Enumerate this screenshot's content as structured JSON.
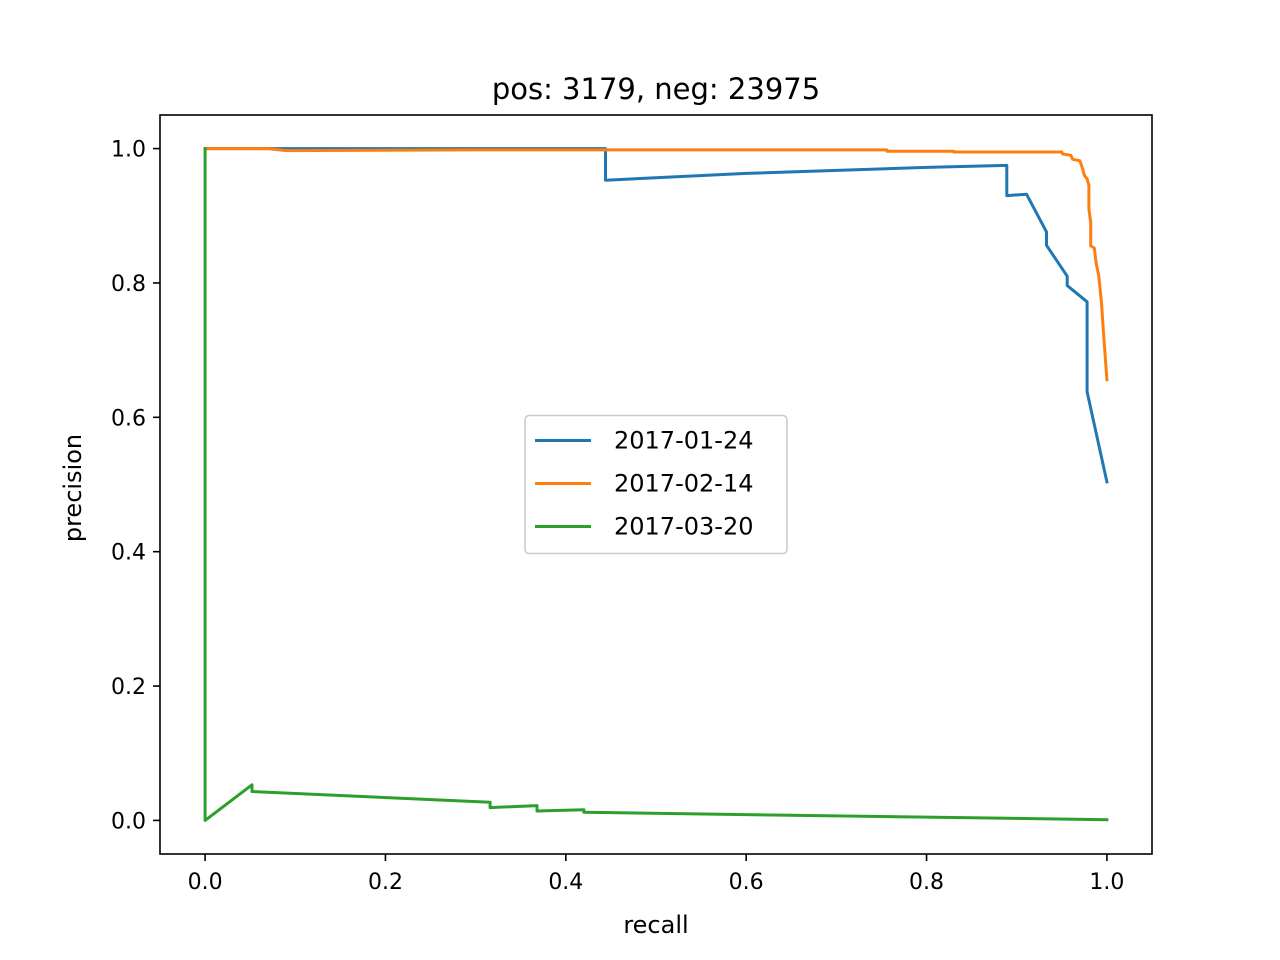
{
  "chart_data": {
    "type": "line",
    "title": "pos: 3179, neg: 23975",
    "xlabel": "recall",
    "ylabel": "precision",
    "xlim": [
      -0.05,
      1.05
    ],
    "ylim": [
      -0.05,
      1.05
    ],
    "xticks": [
      0.0,
      0.2,
      0.4,
      0.6,
      0.8,
      1.0
    ],
    "xtick_labels": [
      "0.0",
      "0.2",
      "0.4",
      "0.6",
      "0.8",
      "1.0"
    ],
    "yticks": [
      0.0,
      0.2,
      0.4,
      0.6,
      0.8,
      1.0
    ],
    "ytick_labels": [
      "0.0",
      "0.2",
      "0.4",
      "0.6",
      "0.8",
      "1.0"
    ],
    "grid": false,
    "legend_position": "center",
    "series": [
      {
        "name": "2017-01-24",
        "color": "#1f77b4",
        "points": [
          [
            0.0,
            1.0
          ],
          [
            0.444,
            1.0
          ],
          [
            0.444,
            0.953
          ],
          [
            0.6,
            0.963
          ],
          [
            0.8,
            0.972
          ],
          [
            0.889,
            0.975
          ],
          [
            0.889,
            0.93
          ],
          [
            0.911,
            0.932
          ],
          [
            0.933,
            0.876
          ],
          [
            0.933,
            0.856
          ],
          [
            0.956,
            0.81
          ],
          [
            0.956,
            0.796
          ],
          [
            0.978,
            0.772
          ],
          [
            0.978,
            0.638
          ],
          [
            1.0,
            0.504
          ]
        ]
      },
      {
        "name": "2017-02-14",
        "color": "#ff7f0e",
        "points": [
          [
            0.0,
            1.0
          ],
          [
            0.07,
            1.0
          ],
          [
            0.09,
            0.997
          ],
          [
            0.3,
            0.998
          ],
          [
            0.756,
            0.998
          ],
          [
            0.756,
            0.996
          ],
          [
            0.83,
            0.996
          ],
          [
            0.83,
            0.995
          ],
          [
            0.95,
            0.995
          ],
          [
            0.951,
            0.992
          ],
          [
            0.96,
            0.99
          ],
          [
            0.962,
            0.984
          ],
          [
            0.97,
            0.982
          ],
          [
            0.973,
            0.97
          ],
          [
            0.975,
            0.96
          ],
          [
            0.978,
            0.955
          ],
          [
            0.98,
            0.945
          ],
          [
            0.98,
            0.91
          ],
          [
            0.982,
            0.89
          ],
          [
            0.982,
            0.855
          ],
          [
            0.986,
            0.852
          ],
          [
            0.988,
            0.83
          ],
          [
            0.991,
            0.81
          ],
          [
            0.994,
            0.77
          ],
          [
            0.996,
            0.73
          ],
          [
            1.0,
            0.656
          ]
        ]
      },
      {
        "name": "2017-03-20",
        "color": "#2ca02c",
        "points": [
          [
            0.0,
            1.0
          ],
          [
            0.0,
            0.0
          ],
          [
            0.052,
            0.053
          ],
          [
            0.052,
            0.043
          ],
          [
            0.316,
            0.027
          ],
          [
            0.316,
            0.019
          ],
          [
            0.368,
            0.022
          ],
          [
            0.368,
            0.014
          ],
          [
            0.42,
            0.016
          ],
          [
            0.42,
            0.012
          ],
          [
            1.0,
            0.001
          ]
        ]
      }
    ]
  }
}
